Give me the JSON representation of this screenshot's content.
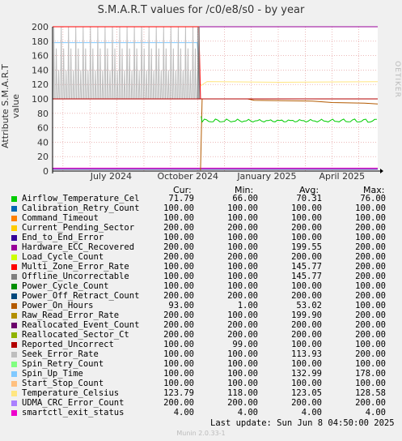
{
  "title": "S.M.A.R.T values for /c0/e8/s0 - by year",
  "watermark": "RRDTOOL / TOBI OETIKER",
  "footer": "Munin 2.0.33-1",
  "legend_headers": {
    "cur": "Cur:",
    "min": "Min:",
    "avg": "Avg:",
    "max": "Max:"
  },
  "last_update": "Last update:  Sun Jun  8 04:50:00 2025",
  "chart_data": {
    "type": "line",
    "title": "S.M.A.R.T values for /c0/e8/s0 - by year",
    "ylabel": "Attribute S.M.A.R.T value",
    "ylim": [
      0,
      200
    ],
    "yticks": [
      "0",
      "20",
      "40",
      "60",
      "80",
      "100",
      "120",
      "140",
      "160",
      "180",
      "200"
    ],
    "xticks": [
      "July 2024",
      "October 2024",
      "January 2025",
      "April 2025"
    ],
    "grid": true,
    "series": [
      {
        "name": "Airflow_Temperature_Cel",
        "color": "#00CC00",
        "cur": "71.79",
        "min": "66.00",
        "avg": "70.31",
        "max": "76.00"
      },
      {
        "name": "Calibration_Retry_Count",
        "color": "#0066B3",
        "cur": "100.00",
        "min": "100.00",
        "avg": "100.00",
        "max": "100.00"
      },
      {
        "name": "Command_Timeout",
        "color": "#FF8000",
        "cur": "100.00",
        "min": "100.00",
        "avg": "100.00",
        "max": "100.00"
      },
      {
        "name": "Current_Pending_Sector",
        "color": "#FFCC00",
        "cur": "200.00",
        "min": "200.00",
        "avg": "200.00",
        "max": "200.00"
      },
      {
        "name": "End_to_End_Error",
        "color": "#330099",
        "cur": "100.00",
        "min": "100.00",
        "avg": "100.00",
        "max": "100.00"
      },
      {
        "name": "Hardware_ECC_Recovered",
        "color": "#990099",
        "cur": "200.00",
        "min": "100.00",
        "avg": "199.55",
        "max": "200.00"
      },
      {
        "name": "Load_Cycle_Count",
        "color": "#CCFF00",
        "cur": "200.00",
        "min": "200.00",
        "avg": "200.00",
        "max": "200.00"
      },
      {
        "name": "Multi_Zone_Error_Rate",
        "color": "#FF0000",
        "cur": "100.00",
        "min": "100.00",
        "avg": "145.77",
        "max": "200.00"
      },
      {
        "name": "Offline_Uncorrectable",
        "color": "#808080",
        "cur": "100.00",
        "min": "100.00",
        "avg": "145.77",
        "max": "200.00"
      },
      {
        "name": "Power_Cycle_Count",
        "color": "#008F00",
        "cur": "100.00",
        "min": "100.00",
        "avg": "100.00",
        "max": "100.00"
      },
      {
        "name": "Power_Off_Retract_Count",
        "color": "#00487D",
        "cur": "200.00",
        "min": "200.00",
        "avg": "200.00",
        "max": "200.00"
      },
      {
        "name": "Power_On_Hours",
        "color": "#B35A00",
        "cur": "93.00",
        "min": "1.00",
        "avg": "53.02",
        "max": "100.00"
      },
      {
        "name": "Raw_Read_Error_Rate",
        "color": "#B38F00",
        "cur": "200.00",
        "min": "100.00",
        "avg": "199.90",
        "max": "200.00"
      },
      {
        "name": "Reallocated_Event_Count",
        "color": "#6B006B",
        "cur": "200.00",
        "min": "200.00",
        "avg": "200.00",
        "max": "200.00"
      },
      {
        "name": "Reallocated_Sector_Ct",
        "color": "#8FB300",
        "cur": "200.00",
        "min": "200.00",
        "avg": "200.00",
        "max": "200.00"
      },
      {
        "name": "Reported_Uncorrect",
        "color": "#B30000",
        "cur": "100.00",
        "min": "99.00",
        "avg": "100.00",
        "max": "100.00"
      },
      {
        "name": "Seek_Error_Rate",
        "color": "#BEBEBE",
        "cur": "100.00",
        "min": "100.00",
        "avg": "113.93",
        "max": "200.00"
      },
      {
        "name": "Spin_Retry_Count",
        "color": "#80FF80",
        "cur": "100.00",
        "min": "100.00",
        "avg": "100.00",
        "max": "100.00"
      },
      {
        "name": "Spin_Up_Time",
        "color": "#80C9FF",
        "cur": "100.00",
        "min": "100.00",
        "avg": "132.99",
        "max": "178.00"
      },
      {
        "name": "Start_Stop_Count",
        "color": "#FFC080",
        "cur": "100.00",
        "min": "100.00",
        "avg": "100.00",
        "max": "100.00"
      },
      {
        "name": "Temperature_Celsius",
        "color": "#FFE680",
        "cur": "123.79",
        "min": "118.00",
        "avg": "123.05",
        "max": "128.58"
      },
      {
        "name": "UDMA_CRC_Error_Count",
        "color": "#AA80FF",
        "cur": "200.00",
        "min": "200.00",
        "avg": "200.00",
        "max": "200.00"
      },
      {
        "name": "smartctl_exit_status",
        "color": "#EE00CC",
        "cur": "4.00",
        "min": "4.00",
        "avg": "4.00",
        "max": "4.00"
      }
    ]
  }
}
